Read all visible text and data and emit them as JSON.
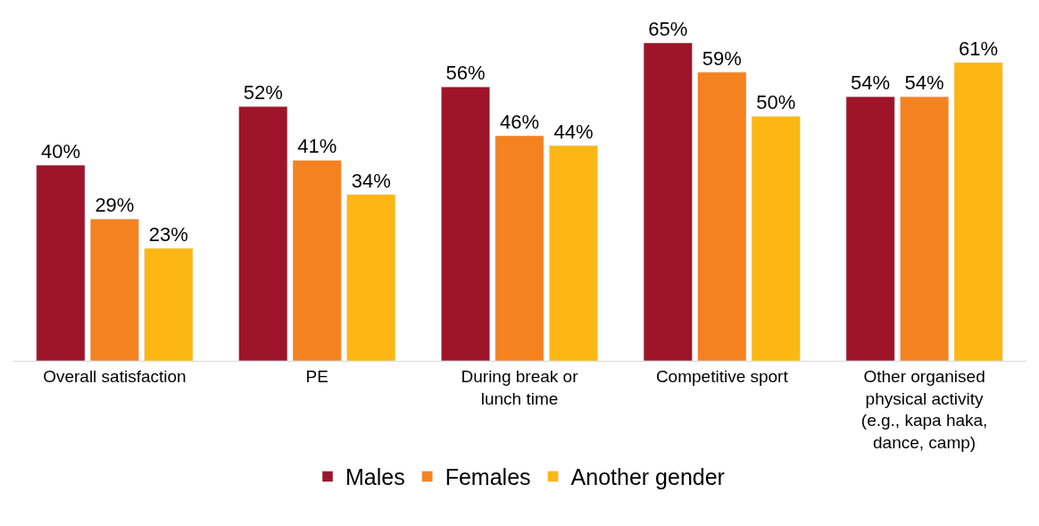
{
  "chart_data": {
    "type": "bar",
    "categories": [
      "Overall satisfaction",
      "PE",
      "During break or lunch time",
      "Competitive sport",
      "Other organised physical activity (e.g., kapa haka, dance, camp)"
    ],
    "series": [
      {
        "name": "Males",
        "color": "#9e1429",
        "values": [
          40,
          52,
          56,
          65,
          54
        ],
        "value_labels": [
          "40%",
          "52%",
          "56%",
          "65%",
          "54%"
        ]
      },
      {
        "name": "Females",
        "color": "#f58220",
        "values": [
          29,
          41,
          46,
          59,
          54
        ],
        "value_labels": [
          "29%",
          "41%",
          "46%",
          "59%",
          "54%"
        ]
      },
      {
        "name": "Another gender",
        "color": "#fdb714",
        "values": [
          23,
          34,
          44,
          50,
          61
        ],
        "value_labels": [
          "23%",
          "34%",
          "44%",
          "50%",
          "61%"
        ]
      }
    ],
    "legend": "bottom"
  }
}
